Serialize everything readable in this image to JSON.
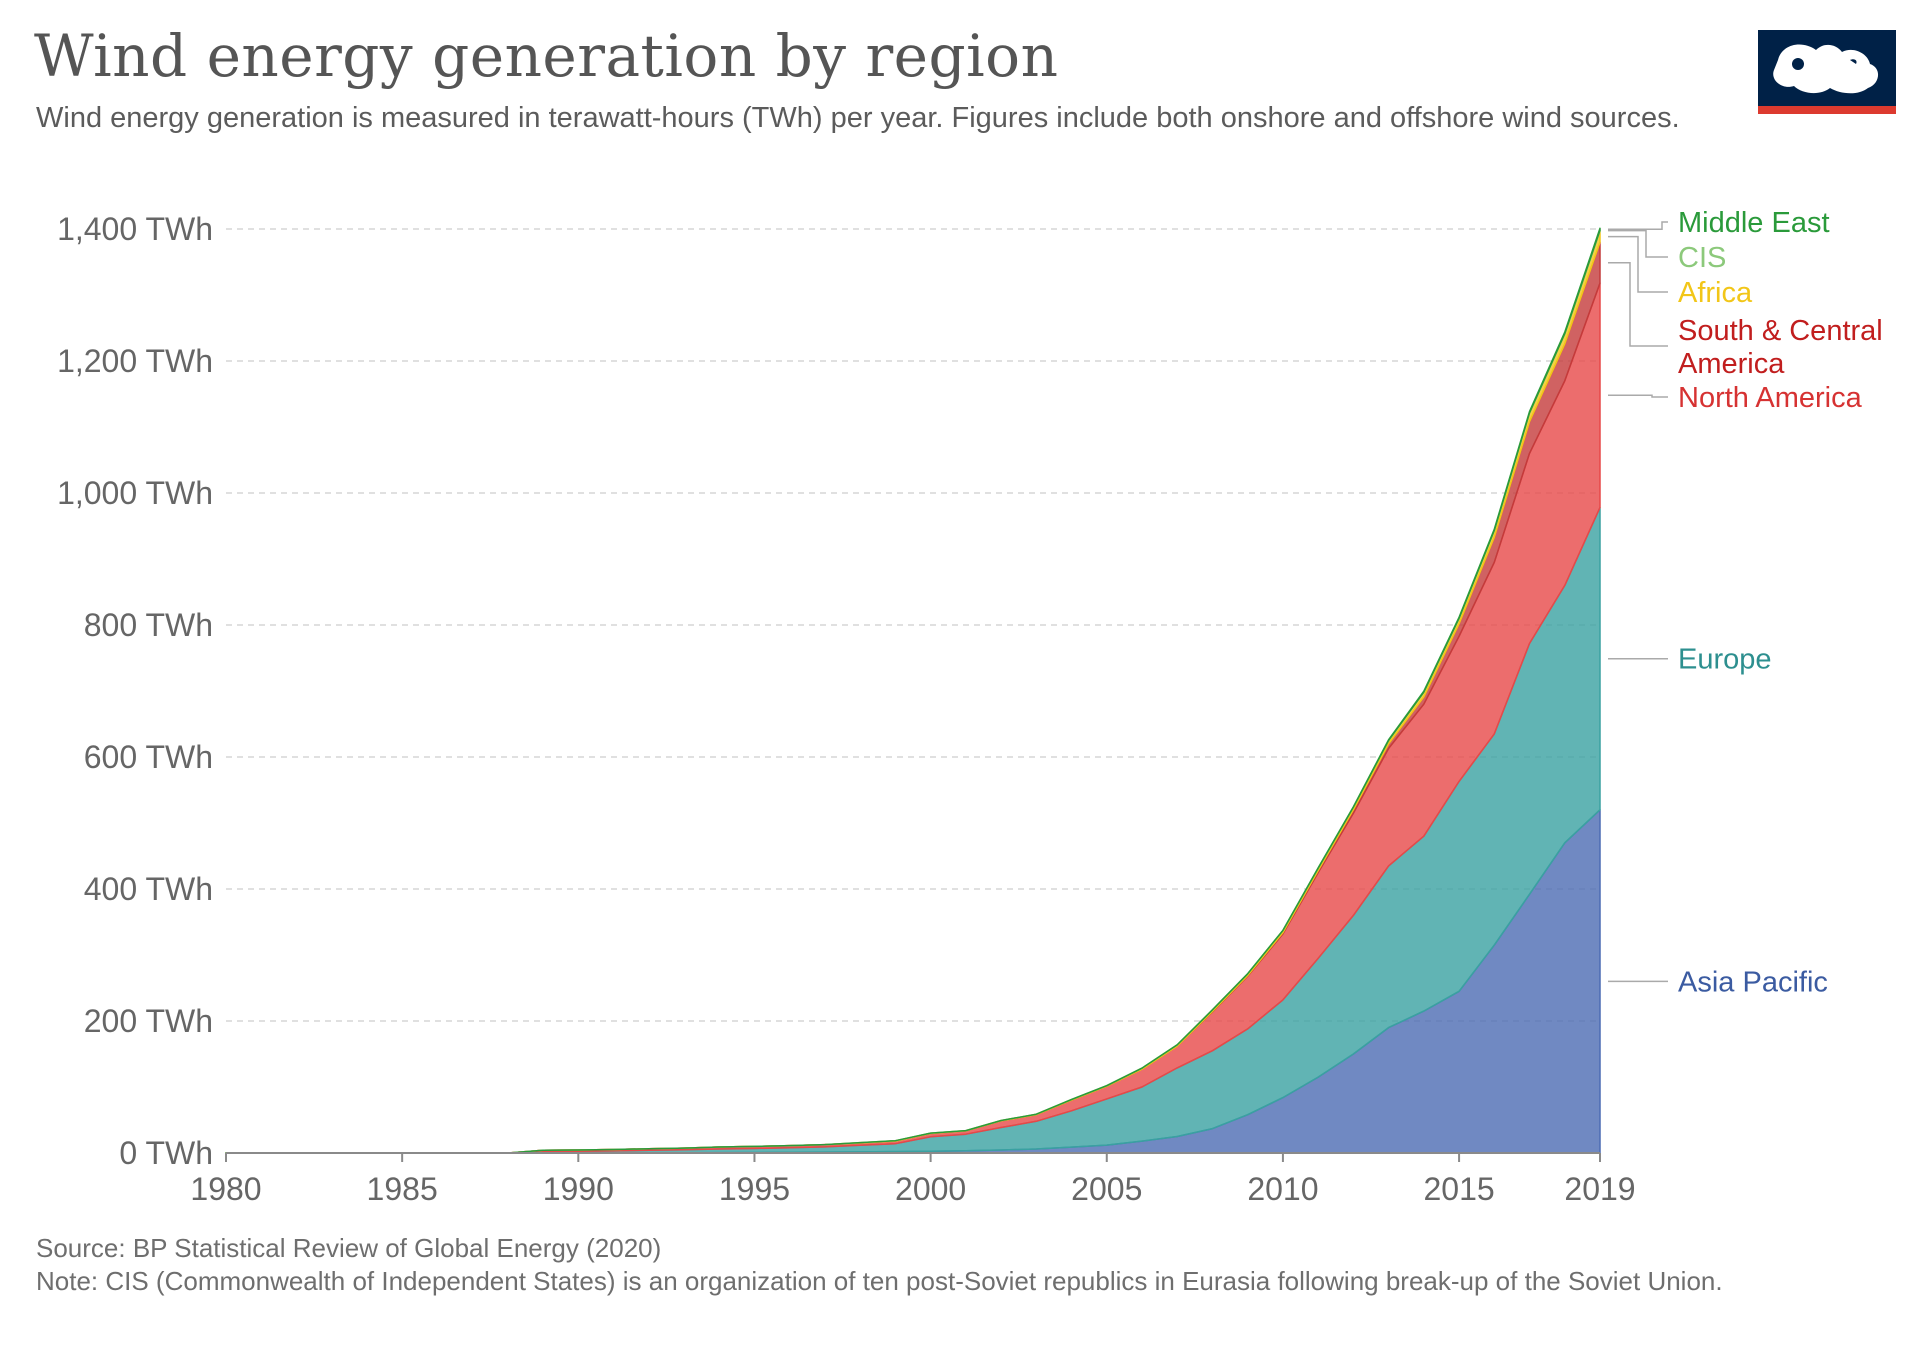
{
  "header": {
    "title": "Wind energy generation by region",
    "subtitle": "Wind energy generation is measured in terawatt-hours (TWh) per year. Figures include both onshore and offshore wind sources."
  },
  "logo": {
    "name": "our-world-in-data-logo",
    "bg_color": "#002147",
    "bar_color": "#dc3a2f"
  },
  "footer": {
    "source": "Source: BP Statistical Review of Global Energy (2020)",
    "note": "Note: CIS (Commonwealth of Independent States) is an organization of ten post-Soviet republics in Eurasia following break-up of the Soviet Union."
  },
  "chart_data": {
    "type": "area",
    "stacked": true,
    "title": "Wind energy generation by region",
    "xlabel": "",
    "ylabel": "",
    "x": [
      1980,
      1981,
      1982,
      1983,
      1984,
      1985,
      1986,
      1987,
      1988,
      1989,
      1990,
      1991,
      1992,
      1993,
      1994,
      1995,
      1996,
      1997,
      1998,
      1999,
      2000,
      2001,
      2002,
      2003,
      2004,
      2005,
      2006,
      2007,
      2008,
      2009,
      2010,
      2011,
      2012,
      2013,
      2014,
      2015,
      2016,
      2017,
      2018,
      2019
    ],
    "ylim": [
      0,
      1400
    ],
    "xticks": [
      1980,
      1985,
      1990,
      1995,
      2000,
      2005,
      2010,
      2015,
      2019
    ],
    "yticks": [
      0,
      200,
      400,
      600,
      800,
      1000,
      1200,
      1400
    ],
    "ytick_labels": [
      "0 TWh",
      "200 TWh",
      "400 TWh",
      "600 TWh",
      "800 TWh",
      "1,000 TWh",
      "1,200 TWh",
      "1,400 TWh"
    ],
    "grid": "horizontal dashed",
    "series": [
      {
        "name": "Asia Pacific",
        "color": "#4c6cb3",
        "label_color": "#3b5ba1",
        "values": [
          0,
          0,
          0,
          0,
          0,
          0,
          0,
          0,
          0,
          0.1,
          0.1,
          0.2,
          0.3,
          0.4,
          0.6,
          0.8,
          1,
          1.3,
          1.7,
          2.1,
          2.6,
          3.5,
          4.6,
          6,
          9,
          12,
          18,
          25,
          37,
          58,
          84,
          115,
          150,
          190,
          215,
          245,
          315,
          392,
          470,
          520
        ]
      },
      {
        "name": "Europe",
        "color": "#3aa1a1",
        "label_color": "#2d8f8f",
        "values": [
          0,
          0,
          0,
          0,
          0,
          0,
          0,
          0,
          0,
          2,
          2.4,
          3,
          3.8,
          4.5,
          5.5,
          6,
          7,
          8,
          10,
          12,
          22,
          25,
          34,
          42,
          55,
          70,
          82,
          104,
          118,
          130,
          148,
          180,
          210,
          245,
          265,
          318,
          320,
          380,
          390,
          458
        ]
      },
      {
        "name": "North America",
        "color": "#e74848",
        "label_color": "#d63232",
        "values": [
          0,
          0,
          0,
          0,
          0,
          0,
          0,
          0,
          0,
          2,
          2,
          2.1,
          2.2,
          2.5,
          3,
          3.2,
          3.2,
          3.4,
          3.5,
          4,
          5,
          5,
          10,
          10,
          16,
          19,
          27,
          33,
          59,
          80,
          100,
          130,
          155,
          178,
          200,
          220,
          260,
          288,
          310,
          340
        ]
      },
      {
        "name": "South & Central America",
        "color": "#c43b3b",
        "label_color": "#c11e1e",
        "values": [
          0,
          0,
          0,
          0,
          0,
          0,
          0,
          0,
          0,
          0,
          0,
          0,
          0,
          0,
          0,
          0,
          0,
          0,
          0,
          0,
          0,
          0,
          0,
          0,
          0,
          0,
          0,
          0,
          0.5,
          1,
          2,
          3,
          5,
          7,
          11,
          19,
          38,
          48,
          56,
          62
        ]
      },
      {
        "name": "Africa",
        "color": "#f2c618",
        "label_color": "#f2c618",
        "values": [
          0,
          0,
          0,
          0,
          0,
          0,
          0,
          0,
          0,
          0,
          0,
          0,
          0,
          0,
          0,
          0,
          0,
          0,
          0.5,
          0.5,
          0.5,
          0.5,
          0.7,
          0.8,
          0.9,
          1,
          1.5,
          1.8,
          2.3,
          2.5,
          3,
          3.5,
          4,
          5,
          7,
          8,
          10,
          13,
          15,
          17
        ]
      },
      {
        "name": "CIS",
        "color": "#9fd08f",
        "label_color": "#8cc97b",
        "values": [
          0,
          0,
          0,
          0,
          0,
          0,
          0,
          0,
          0,
          0,
          0,
          0,
          0,
          0,
          0,
          0,
          0,
          0,
          0,
          0,
          0,
          0,
          0,
          0,
          0,
          0,
          0,
          0,
          0,
          0,
          0.1,
          0.1,
          0.1,
          0.2,
          0.2,
          0.3,
          0.3,
          0.3,
          0.5,
          1
        ]
      },
      {
        "name": "Middle East",
        "color": "#2a9a3a",
        "label_color": "#2a9a3a",
        "values": [
          0,
          0,
          0,
          0,
          0,
          0,
          0,
          0,
          0,
          0,
          0,
          0,
          0,
          0,
          0,
          0,
          0,
          0,
          0,
          0,
          0,
          0,
          0,
          0,
          0.1,
          0.1,
          0.2,
          0.2,
          0.3,
          0.3,
          0.4,
          0.5,
          0.6,
          1,
          1.5,
          1.5,
          2,
          2,
          2.5,
          3
        ]
      }
    ]
  }
}
